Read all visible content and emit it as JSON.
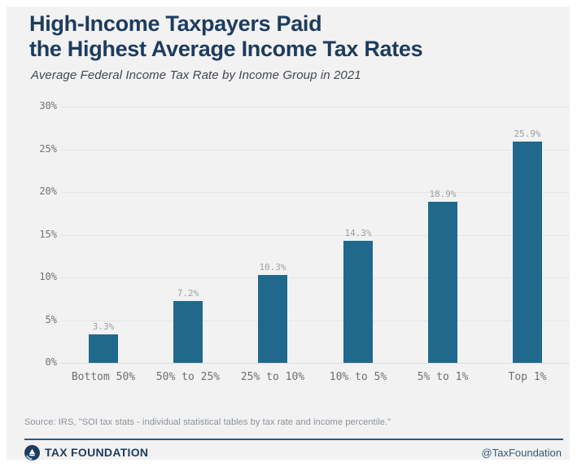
{
  "header": {
    "title": "High-Income Taxpayers Paid\nthe Highest Average Income Tax Rates",
    "subtitle": "Average Federal Income Tax Rate by Income Group in 2021"
  },
  "chart_data": {
    "type": "bar",
    "title": "High-Income Taxpayers Paid the Highest Average Income Tax Rates",
    "subtitle": "Average Federal Income Tax Rate by Income Group in 2021",
    "categories": [
      "Bottom 50%",
      "50% to 25%",
      "25% to 10%",
      "10% to 5%",
      "5% to 1%",
      "Top 1%"
    ],
    "values": [
      3.3,
      7.2,
      10.3,
      14.3,
      18.9,
      25.9
    ],
    "value_labels": [
      "3.3%",
      "7.2%",
      "10.3%",
      "14.3%",
      "18.9%",
      "25.9%"
    ],
    "xlabel": "",
    "ylabel": "",
    "ylim": [
      0,
      30
    ],
    "yticks": [
      0,
      5,
      10,
      15,
      20,
      25,
      30
    ],
    "ytick_labels": [
      "0%",
      "5%",
      "10%",
      "15%",
      "20%",
      "25%",
      "30%"
    ],
    "grid": true,
    "legend": false,
    "bar_color": "#20698c"
  },
  "footer": {
    "source": "Source: IRS, \"SOI tax stats - individual statistical tables by tax rate and income percentile.\"",
    "brand": "TAX FOUNDATION",
    "handle": "@TaxFoundation"
  },
  "colors": {
    "accent_navy": "#1d3c5e",
    "bar": "#20698c",
    "card_background": "#f2f2f3",
    "gridline": "#e4e5e6",
    "tick_text": "#6e7378",
    "value_text": "#9aa0a4",
    "source_text": "#8b9196",
    "divider": "#2e5977"
  },
  "icons": {
    "logo": "tax-foundation-logo-icon"
  }
}
